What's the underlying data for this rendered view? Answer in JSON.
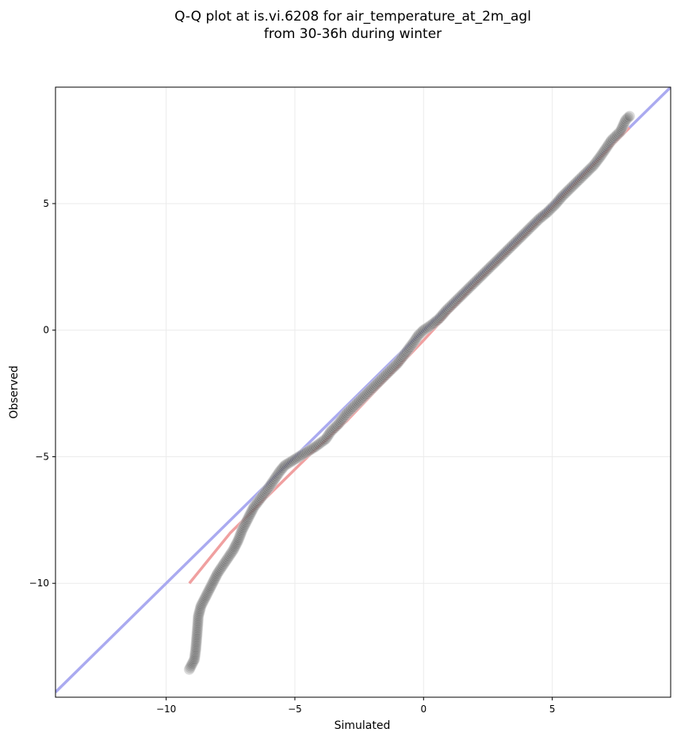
{
  "chart_data": {
    "type": "scatter",
    "title": "Q-Q plot at is.vi.6208 for air_temperature_at_2m_agl",
    "subtitle": "from 30-36h during winter",
    "xlabel": "Simulated",
    "ylabel": "Observed",
    "xlim": [
      -14.3,
      9.6
    ],
    "ylim": [
      -14.5,
      9.6
    ],
    "xticks": [
      -10,
      -5,
      0,
      5
    ],
    "yticks": [
      -10,
      -5,
      0,
      5
    ],
    "xtick_labels": [
      "−10",
      "−5",
      "0",
      "5"
    ],
    "ytick_labels": [
      "−10",
      "−5",
      "0",
      "5"
    ],
    "grid": true,
    "reference_line": {
      "points": [
        [
          -14.3,
          -14.3
        ],
        [
          9.6,
          9.6
        ]
      ],
      "color": "#aaaaf0"
    },
    "fit_line": {
      "points": [
        [
          -9.1,
          -10.0
        ],
        [
          -7.5,
          -8.0
        ],
        [
          -6.0,
          -6.5
        ],
        [
          -4.5,
          -5.0
        ],
        [
          -3.0,
          -3.6
        ],
        [
          -1.5,
          -2.0
        ],
        [
          0.0,
          -0.4
        ],
        [
          2.0,
          1.8
        ],
        [
          4.0,
          3.8
        ],
        [
          6.0,
          5.9
        ],
        [
          8.0,
          8.0
        ]
      ],
      "color": "#f0a0a0"
    },
    "quantile_points": [
      [
        -9.1,
        -13.4
      ],
      [
        -8.9,
        -13.0
      ],
      [
        -8.85,
        -12.6
      ],
      [
        -8.8,
        -12.0
      ],
      [
        -8.75,
        -11.3
      ],
      [
        -8.65,
        -10.9
      ],
      [
        -8.5,
        -10.6
      ],
      [
        -8.35,
        -10.3
      ],
      [
        -8.2,
        -10.0
      ],
      [
        -8.0,
        -9.6
      ],
      [
        -7.8,
        -9.3
      ],
      [
        -7.6,
        -9.0
      ],
      [
        -7.4,
        -8.7
      ],
      [
        -7.2,
        -8.3
      ],
      [
        -7.05,
        -7.9
      ],
      [
        -6.8,
        -7.4
      ],
      [
        -6.6,
        -7.0
      ],
      [
        -6.3,
        -6.6
      ],
      [
        -6.0,
        -6.2
      ],
      [
        -5.8,
        -5.9
      ],
      [
        -5.6,
        -5.6
      ],
      [
        -5.4,
        -5.35
      ],
      [
        -5.0,
        -5.1
      ],
      [
        -4.6,
        -4.85
      ],
      [
        -4.2,
        -4.6
      ],
      [
        -3.8,
        -4.3
      ],
      [
        -3.6,
        -4.0
      ],
      [
        -3.3,
        -3.7
      ],
      [
        -3.0,
        -3.3
      ],
      [
        -2.7,
        -3.0
      ],
      [
        -2.3,
        -2.6
      ],
      [
        -2.0,
        -2.3
      ],
      [
        -1.6,
        -1.9
      ],
      [
        -1.3,
        -1.6
      ],
      [
        -1.0,
        -1.3
      ],
      [
        -0.7,
        -0.9
      ],
      [
        -0.4,
        -0.5
      ],
      [
        -0.2,
        -0.2
      ],
      [
        0.0,
        0.0
      ],
      [
        0.3,
        0.2
      ],
      [
        0.6,
        0.45
      ],
      [
        0.9,
        0.8
      ],
      [
        1.2,
        1.1
      ],
      [
        1.5,
        1.4
      ],
      [
        1.8,
        1.7
      ],
      [
        2.1,
        2.0
      ],
      [
        2.4,
        2.3
      ],
      [
        2.7,
        2.6
      ],
      [
        3.0,
        2.9
      ],
      [
        3.3,
        3.2
      ],
      [
        3.6,
        3.5
      ],
      [
        3.9,
        3.8
      ],
      [
        4.2,
        4.1
      ],
      [
        4.5,
        4.4
      ],
      [
        4.8,
        4.65
      ],
      [
        5.1,
        4.95
      ],
      [
        5.4,
        5.3
      ],
      [
        5.7,
        5.6
      ],
      [
        6.0,
        5.9
      ],
      [
        6.3,
        6.2
      ],
      [
        6.6,
        6.5
      ],
      [
        6.9,
        6.9
      ],
      [
        7.1,
        7.2
      ],
      [
        7.3,
        7.5
      ],
      [
        7.5,
        7.7
      ],
      [
        7.65,
        7.85
      ],
      [
        7.85,
        8.3
      ],
      [
        8.0,
        8.45
      ]
    ]
  }
}
